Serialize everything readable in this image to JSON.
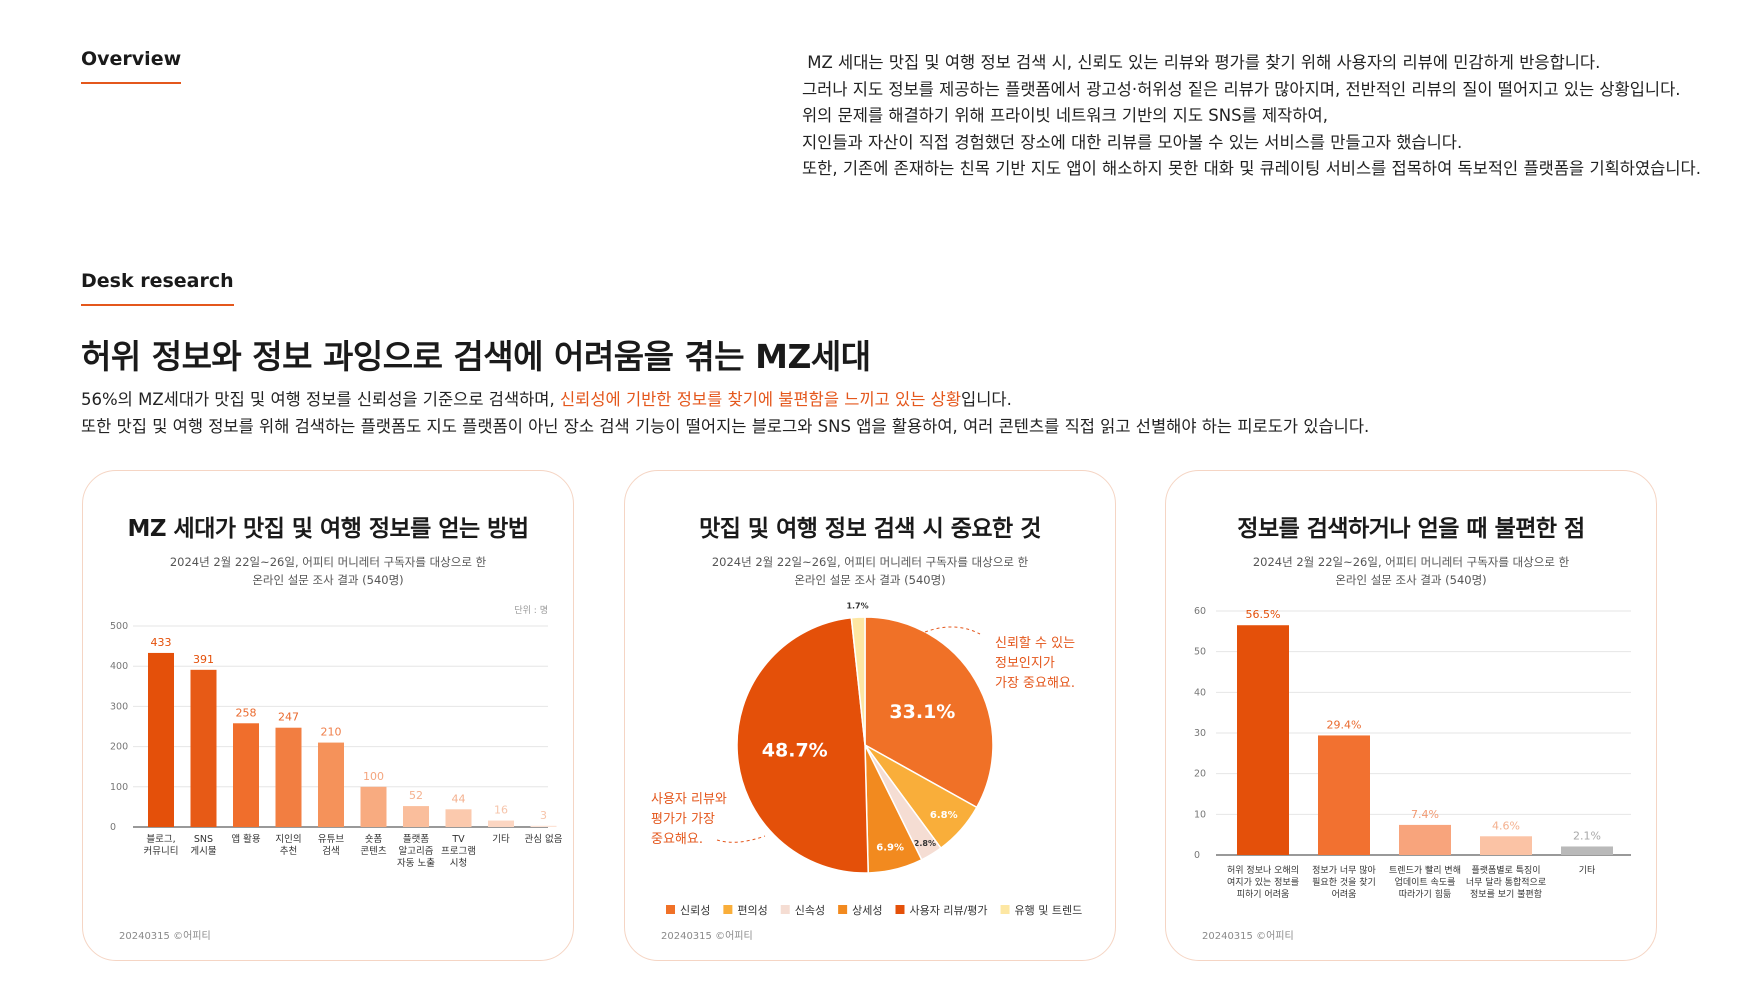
{
  "overview": {
    "label": "Overview",
    "lines": [
      " MZ 세대는 맛집 및 여행 정보 검색 시, 신뢰도 있는 리뷰와 평가를 찾기 위해 사용자의 리뷰에 민감하게 반응합니다.",
      "그러나 지도 정보를 제공하는 플랫폼에서 광고성·허위성 짙은 리뷰가 많아지며, 전반적인 리뷰의 질이 떨어지고 있는 상황입니다.",
      "",
      "위의 문제를 해결하기 위해 프라이빗 네트워크 기반의 지도 SNS를 제작하여,",
      "지인들과 자산이 직접 경험했던 장소에 대한 리뷰를 모아볼 수 있는 서비스를 만들고자 했습니다.",
      "또한, 기존에 존재하는 친목 기반 지도 앱이 해소하지 못한 대화 및 큐레이팅 서비스를 접목하여 독보적인 플랫폼을 기획하였습니다."
    ]
  },
  "desk": {
    "label": "Desk research",
    "headline": "허위 정보와 정보 과잉으로 검색에 어려움을 겪는 MZ세대",
    "line1_pre": "56%의 MZ세대가 맛집 및 여행 정보를 신뢰성을 기준으로 검색하며, ",
    "line1_hl": "신뢰성에 기반한 정보를 찾기에 불편함을 느끼고 있는 상황",
    "line1_post": "입니다.",
    "line2": "또한 맛집 및 여행 정보를 위해 검색하는 플랫폼도 지도 플랫폼이 아닌 장소 검색 기능이 떨어지는 블로그와 SNS 앱을 활용하여, 여러 콘텐츠를 직접 읽고 선별해야 하는 피로도가 있습니다."
  },
  "colors": {
    "accent": "#e4571c",
    "gridline": "#e6e6e6",
    "card_border": "#f5d5c4"
  },
  "chart_data": [
    {
      "type": "bar",
      "title": "MZ 세대가 맛집 및 여행 정보를 얻는 방법",
      "subtitle_lines": [
        "2024년 2월 22일~26일, 어피티 머니레터 구독자를 대상으로 한",
        "온라인 설문 조사 결과 (540명)"
      ],
      "unit": "단위 : 명",
      "footnote": "20240315 ©어피티",
      "categories": [
        [
          "블로그,",
          "커뮤니티"
        ],
        [
          "SNS",
          "게시물"
        ],
        [
          "앱 활용"
        ],
        [
          "지인의",
          "추천"
        ],
        [
          "유튜브",
          "검색"
        ],
        [
          "숏폼",
          "콘텐츠"
        ],
        [
          "플랫폼",
          "알고리즘",
          "자동 노출"
        ],
        [
          "TV",
          "프로그램",
          "시청"
        ],
        [
          "기타"
        ],
        [
          "관심 없음"
        ]
      ],
      "values": [
        433,
        391,
        258,
        247,
        210,
        100,
        52,
        44,
        16,
        3
      ],
      "value_labels": [
        "433",
        "391",
        "258",
        "247",
        "210",
        "100",
        "52",
        "44",
        "16",
        "3"
      ],
      "bar_colors": [
        "#e4500a",
        "#e75a16",
        "#f06e2c",
        "#f27e41",
        "#f5925a",
        "#f8ab80",
        "#fabe9c",
        "#fbc9ad",
        "#fcd6c2",
        "#fde3d6"
      ],
      "label_colors": [
        "#e4500a",
        "#e4500a",
        "#ea6a2e",
        "#ea6a2e",
        "#ef7f4a",
        "#f4a57e",
        "#f4b08e",
        "#f4b08e",
        "#f6c4aa",
        "#f6c4aa"
      ],
      "ylim": [
        0,
        500
      ],
      "yticks": [
        "0",
        "100",
        "200",
        "300",
        "400",
        "500"
      ],
      "grid": true
    },
    {
      "type": "pie",
      "title": "맛집 및 여행 정보 검색 시 중요한 것",
      "subtitle_lines": [
        "2024년 2월 22일~26일, 어피티 머니레터 구독자를 대상으로 한",
        "온라인 설문 조사 결과 (540명)"
      ],
      "footnote": "20240315 ©어피티",
      "slices": [
        {
          "name": "신뢰성",
          "value": 33.1,
          "label": "33.1%",
          "color": "#f07127"
        },
        {
          "name": "편의성",
          "value": 6.8,
          "label": "6.8%",
          "color": "#f9ae3a"
        },
        {
          "name": "신속성",
          "value": 2.8,
          "label": "2.8%",
          "color": "#f5ddd3"
        },
        {
          "name": "상세성",
          "value": 6.9,
          "label": "6.9%",
          "color": "#f28a1f"
        },
        {
          "name": "사용자 리뷰/평가",
          "value": 48.7,
          "label": "48.7%",
          "color": "#e45009"
        },
        {
          "name": "유행 및 트렌드",
          "value": 1.7,
          "label": "1.7%",
          "color": "#fde7a3"
        }
      ],
      "annotation_right": [
        "신뢰할 수 있는",
        "정보인지가",
        "가장 중요해요."
      ],
      "annotation_left": [
        "사용자 리뷰와",
        "평가가 가장",
        "중요해요."
      ],
      "legend_position": "bottom"
    },
    {
      "type": "bar",
      "title": "정보를 검색하거나 얻을 때 불편한 점",
      "subtitle_lines": [
        "2024년 2월 22일~26일, 어피티 머니레터 구독자를 대상으로 한",
        "온라인 설문 조사 결과 (540명)"
      ],
      "footnote": "20240315 ©어피티",
      "categories": [
        [
          "허위 정보나 오해의",
          "여지가 있는 정보를",
          "피하기 어려움"
        ],
        [
          "정보가 너무 많아",
          "필요한 것을 찾기",
          "어려움"
        ],
        [
          "트렌드가 빨리 변해",
          "업데이트 속도를",
          "따라가기 힘듦"
        ],
        [
          "플랫폼별로 특징이",
          "너무 달라 통합적으로",
          "정보를 보기 불편함"
        ],
        [
          "기타"
        ]
      ],
      "values": [
        56.5,
        29.4,
        7.4,
        4.6,
        2.1
      ],
      "value_labels": [
        "56.5%",
        "29.4%",
        "7.4%",
        "4.6%",
        "2.1%"
      ],
      "bar_colors": [
        "#e4500a",
        "#f27130",
        "#f8a47c",
        "#fbc3a5",
        "#b9b9b9"
      ],
      "label_colors": [
        "#e4500a",
        "#ea6a2e",
        "#f29a72",
        "#f4b08e",
        "#a8a8a8"
      ],
      "ylim": [
        0,
        60
      ],
      "yticks": [
        "0",
        "10",
        "20",
        "30",
        "40",
        "50",
        "60"
      ],
      "grid": true
    }
  ]
}
